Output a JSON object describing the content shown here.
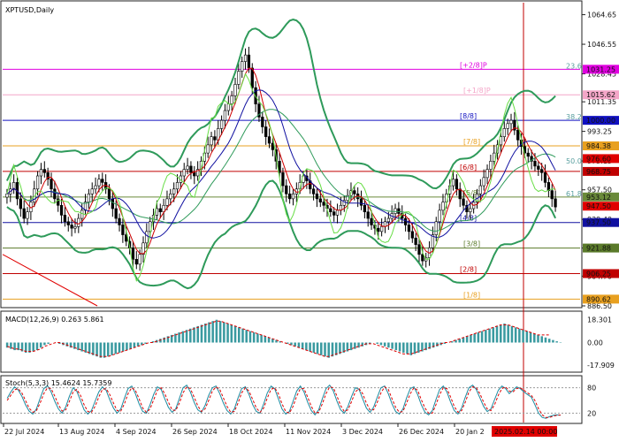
{
  "chart_data": {
    "type": "candlestick",
    "symbol_title": "XPTUSD,Daily",
    "price_axis": {
      "ylim": [
        886.5,
        1072.0
      ],
      "ticks": [
        "1064.65",
        "1046.55",
        "1028.45",
        "1011.35",
        "993.25",
        "975.15",
        "957.50",
        "939.40",
        "921.88",
        "904.70",
        "886.50"
      ]
    },
    "price_badges": [
      {
        "label": "1031.25",
        "value": 1031.25,
        "color": "#e000e0"
      },
      {
        "label": "1015.62",
        "value": 1015.62,
        "color": "#f4a6c8"
      },
      {
        "label": "1000.00",
        "value": 1000.0,
        "color": "#1010c0"
      },
      {
        "label": "984.38",
        "value": 984.38,
        "color": "#e8a020"
      },
      {
        "label": "976.60",
        "value": 976.6,
        "color": "#e00000"
      },
      {
        "label": "968.75",
        "value": 968.75,
        "color": "#c00000"
      },
      {
        "label": "953.12",
        "value": 953.12,
        "color": "#6a8a3a"
      },
      {
        "label": "947.50",
        "value": 947.5,
        "color": "#e00000"
      },
      {
        "label": "937.50",
        "value": 937.5,
        "color": "#1010a0"
      },
      {
        "label": "921.88",
        "value": 921.88,
        "color": "#5a7a2a"
      },
      {
        "label": "906.25",
        "value": 906.25,
        "color": "#c00000"
      },
      {
        "label": "890.62",
        "value": 890.62,
        "color": "#e8a020"
      }
    ],
    "murrey_levels": [
      {
        "label": "[+2/8]P",
        "value": 1031.25,
        "color": "#e000e0"
      },
      {
        "label": "[+1/8]P",
        "value": 1015.62,
        "color": "#f4a6c8"
      },
      {
        "label": "[8/8]",
        "value": 1000.0,
        "color": "#1010c0"
      },
      {
        "label": "[7/8]",
        "value": 984.38,
        "color": "#e8a020"
      },
      {
        "label": "[6/8]",
        "value": 968.75,
        "color": "#c00000"
      },
      {
        "label": "[5/8]",
        "value": 953.12,
        "color": "#6a8a3a"
      },
      {
        "label": "[4/8]",
        "value": 937.5,
        "color": "#1010a0"
      },
      {
        "label": "[3/8]",
        "value": 921.88,
        "color": "#5a7a2a"
      },
      {
        "label": "[2/8]",
        "value": 906.25,
        "color": "#c00000"
      },
      {
        "label": "[1/8]",
        "value": 890.62,
        "color": "#e8a020"
      }
    ],
    "fibo_labels": [
      {
        "label": "23.6",
        "value": 1031.25
      },
      {
        "label": "38.2",
        "value": 1000.0
      },
      {
        "label": "50.0",
        "value": 973.0
      },
      {
        "label": "61.8",
        "value": 953.12
      }
    ],
    "x_axis_labels": [
      "22 Jul 2024",
      "13 Aug 2024",
      "4 Sep 2024",
      "26 Sep 2024",
      "18 Oct 2024",
      "11 Nov 2024",
      "3 Dec 2024",
      "26 Dec 2024",
      "20 Jan 2",
      "2025.02.14 00:00"
    ],
    "closes": [
      955,
      958,
      962,
      952,
      946,
      940,
      944,
      950,
      958,
      966,
      970,
      968,
      964,
      958,
      952,
      948,
      942,
      938,
      936,
      934,
      935,
      940,
      945,
      950,
      955,
      958,
      960,
      964,
      962,
      958,
      952,
      946,
      940,
      936,
      930,
      926,
      922,
      915,
      912,
      918,
      925,
      932,
      938,
      942,
      946,
      944,
      948,
      952,
      955,
      958,
      962,
      966,
      970,
      972,
      968,
      966,
      970,
      975,
      980,
      985,
      990,
      988,
      995,
      1000,
      1006,
      1010,
      1015,
      1022,
      1030,
      1036,
      1040,
      1032,
      1020,
      1010,
      1002,
      996,
      990,
      986,
      982,
      975,
      968,
      960,
      955,
      952,
      955,
      958,
      962,
      966,
      963,
      958,
      955,
      952,
      950,
      948,
      946,
      944,
      942,
      945,
      948,
      951,
      954,
      957,
      955,
      952,
      948,
      944,
      940,
      936,
      934,
      932,
      935,
      938,
      940,
      943,
      946,
      943,
      940,
      936,
      932,
      928,
      924,
      918,
      914,
      916,
      922,
      930,
      938,
      945,
      950,
      955,
      960,
      964,
      958,
      952,
      948,
      944,
      946,
      950,
      955,
      960,
      965,
      970,
      975,
      980,
      985,
      990,
      995,
      998,
      1000,
      994,
      988,
      984,
      980,
      978,
      975,
      972,
      970,
      968,
      962,
      957,
      952,
      947
    ]
  },
  "macd": {
    "label": "MACD(12,26,9) 0.263 5.861",
    "ticks": [
      "18.301",
      "0.00",
      "-17.909"
    ],
    "ylim": [
      -22,
      22
    ],
    "histogram": [
      -4,
      -5,
      -6,
      -6,
      -7,
      -8,
      -8,
      -7,
      -6,
      -4,
      -2,
      -1,
      0,
      0,
      -1,
      -2,
      -3,
      -4,
      -5,
      -6,
      -7,
      -8,
      -9,
      -10,
      -11,
      -12,
      -12,
      -11,
      -10,
      -9,
      -8,
      -7,
      -6,
      -5,
      -4,
      -3,
      -2,
      -1,
      0,
      1,
      2,
      3,
      4,
      5,
      6,
      7,
      8,
      9,
      10,
      11,
      12,
      13,
      14,
      15,
      16,
      17,
      18,
      17,
      16,
      15,
      14,
      13,
      12,
      11,
      10,
      9,
      8,
      7,
      6,
      5,
      4,
      3,
      2,
      1,
      0,
      -1,
      -2,
      -3,
      -4,
      -5,
      -6,
      -7,
      -8,
      -9,
      -10,
      -11,
      -12,
      -11,
      -10,
      -9,
      -8,
      -7,
      -6,
      -5,
      -4,
      -3,
      -2,
      -1,
      0,
      -1,
      -2,
      -3,
      -4,
      -5,
      -6,
      -7,
      -8,
      -9,
      -10,
      -9,
      -8,
      -7,
      -6,
      -5,
      -4,
      -3,
      -2,
      -1,
      0,
      1,
      2,
      3,
      4,
      5,
      6,
      7,
      8,
      9,
      10,
      11,
      12,
      13,
      14,
      15,
      14,
      13,
      12,
      11,
      10,
      9,
      8,
      7,
      6,
      5,
      4,
      3,
      2,
      1,
      0.3
    ],
    "signal": [
      -3,
      -4,
      -5,
      -5,
      -6,
      -7,
      -7,
      -7,
      -6,
      -5,
      -3,
      -2,
      -1,
      0,
      0,
      -1,
      -2,
      -3,
      -4,
      -5,
      -6,
      -7,
      -8,
      -9,
      -10,
      -11,
      -11,
      -11,
      -10,
      -9,
      -8,
      -7,
      -6,
      -5,
      -4,
      -3,
      -2,
      -1,
      0,
      0,
      1,
      2,
      3,
      4,
      5,
      6,
      7,
      8,
      9,
      10,
      11,
      12,
      13,
      14,
      15,
      16,
      17,
      17,
      16,
      15,
      14,
      13,
      12,
      11,
      10,
      9,
      8,
      7,
      6,
      5,
      4,
      3,
      2,
      1,
      0,
      -1,
      -2,
      -3,
      -4,
      -5,
      -6,
      -7,
      -8,
      -9,
      -10,
      -11,
      -11,
      -10,
      -9,
      -8,
      -7,
      -6,
      -5,
      -4,
      -3,
      -2,
      -1,
      -1,
      -1,
      -2,
      -3,
      -4,
      -5,
      -6,
      -7,
      -8,
      -9,
      -9,
      -9,
      -8,
      -7,
      -6,
      -5,
      -4,
      -3,
      -2,
      -1,
      0,
      0,
      1,
      2,
      3,
      4,
      5,
      6,
      7,
      8,
      9,
      10,
      11,
      12,
      13,
      14,
      14,
      14,
      13,
      12,
      11,
      10,
      9,
      8,
      7,
      6,
      6,
      6,
      6
    ]
  },
  "stoch": {
    "label": "Stoch(5,3,3) 15.4624 15.7359",
    "ticks": [
      "80",
      "20"
    ],
    "ylim": [
      0,
      100
    ],
    "main": [
      55,
      70,
      82,
      75,
      60,
      40,
      25,
      18,
      30,
      55,
      78,
      85,
      70,
      48,
      30,
      20,
      35,
      60,
      80,
      72,
      50,
      28,
      18,
      26,
      48,
      70,
      82,
      74,
      52,
      32,
      20,
      30,
      55,
      78,
      84,
      66,
      42,
      24,
      20,
      40,
      65,
      82,
      76,
      54,
      34,
      22,
      30,
      55,
      80,
      86,
      70,
      46,
      28,
      22,
      38,
      62,
      80,
      84,
      66,
      44,
      26,
      18,
      30,
      56,
      78,
      82,
      64,
      40,
      24,
      20,
      42,
      68,
      84,
      78,
      54,
      30,
      18,
      24,
      48,
      72,
      84,
      70,
      46,
      26,
      16,
      28,
      54,
      78,
      86,
      72,
      48,
      28,
      20,
      36,
      60,
      80,
      76,
      54,
      32,
      22,
      34,
      58,
      80,
      84,
      66,
      42,
      24,
      18,
      30,
      56,
      78,
      82,
      64,
      40,
      22,
      16,
      26,
      52,
      76,
      84,
      70,
      46,
      26,
      18,
      32,
      58,
      80,
      86,
      76,
      56,
      36,
      24,
      30,
      52,
      74,
      84,
      78,
      66,
      74,
      82,
      78,
      70,
      64,
      58,
      40,
      20,
      10,
      8,
      12,
      15,
      16,
      15
    ],
    "signal": [
      50,
      62,
      75,
      78,
      68,
      50,
      32,
      22,
      26,
      44,
      66,
      80,
      78,
      60,
      40,
      25,
      28,
      48,
      70,
      76,
      62,
      40,
      24,
      22,
      36,
      58,
      76,
      78,
      64,
      44,
      26,
      25,
      42,
      66,
      80,
      74,
      54,
      32,
      22,
      30,
      52,
      74,
      80,
      66,
      46,
      28,
      26,
      44,
      68,
      82,
      78,
      58,
      38,
      24,
      30,
      50,
      72,
      82,
      76,
      56,
      36,
      22,
      24,
      44,
      68,
      80,
      72,
      52,
      32,
      22,
      32,
      56,
      76,
      80,
      66,
      42,
      24,
      20,
      36,
      60,
      78,
      78,
      58,
      36,
      20,
      22,
      42,
      66,
      82,
      80,
      60,
      38,
      24,
      28,
      48,
      70,
      78,
      66,
      44,
      28,
      28,
      46,
      68,
      82,
      76,
      54,
      34,
      22,
      24,
      44,
      66,
      80,
      74,
      52,
      32,
      20,
      20,
      40,
      64,
      80,
      78,
      58,
      36,
      22,
      26,
      46,
      70,
      82,
      80,
      66,
      46,
      30,
      26,
      40,
      62,
      78,
      82,
      72,
      70,
      78,
      80,
      74,
      68,
      62,
      50,
      30,
      16,
      10,
      10,
      13,
      15,
      15.7
    ]
  }
}
